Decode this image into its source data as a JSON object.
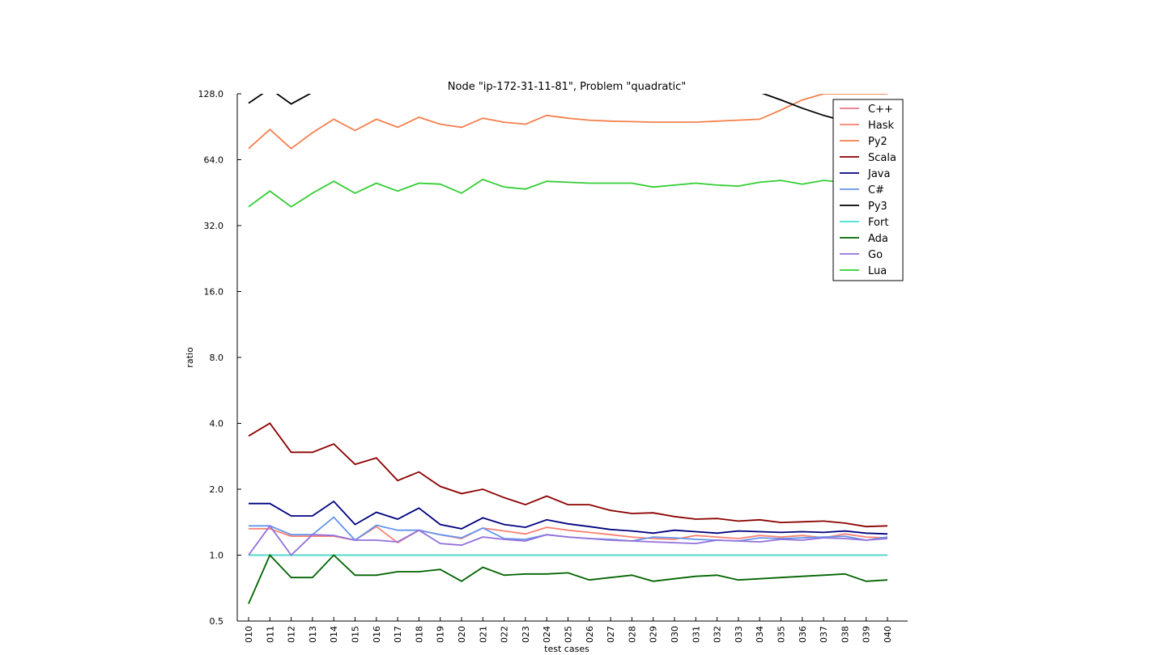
{
  "chart_data": {
    "type": "line",
    "title": "Node \"ip-172-31-11-81\", Problem \"quadratic\"",
    "xlabel": "test cases",
    "ylabel": "ratio",
    "yscale": "log2",
    "ylim": [
      0.5,
      128.0
    ],
    "yticks": [
      "0.5",
      "1.0",
      "2.0",
      "4.0",
      "8.0",
      "16.0",
      "32.0",
      "64.0",
      "128.0"
    ],
    "ytick_values": [
      0.5,
      1,
      2,
      4,
      8,
      16,
      32,
      64,
      128
    ],
    "legend_position": "top-right",
    "grid": false,
    "categories": [
      "010",
      "011",
      "012",
      "013",
      "014",
      "015",
      "016",
      "017",
      "018",
      "019",
      "020",
      "021",
      "022",
      "023",
      "024",
      "025",
      "026",
      "027",
      "028",
      "029",
      "030",
      "031",
      "032",
      "033",
      "034",
      "035",
      "036",
      "037",
      "038",
      "039",
      "040"
    ],
    "series": [
      {
        "name": "C++",
        "color": "#e8758a",
        "values": [
          1,
          1,
          1,
          1,
          1,
          1,
          1,
          1,
          1,
          1,
          1,
          1,
          1,
          1,
          1,
          1,
          1,
          1,
          1,
          1,
          1,
          1,
          1,
          1,
          1,
          1,
          1,
          1,
          1,
          1,
          1
        ]
      },
      {
        "name": "Hask",
        "color": "#fa8072",
        "values": [
          1.32,
          1.32,
          1.22,
          1.22,
          1.22,
          1.17,
          1.35,
          1.14,
          1.3,
          1.24,
          1.19,
          1.33,
          1.29,
          1.25,
          1.34,
          1.3,
          1.27,
          1.24,
          1.21,
          1.19,
          1.18,
          1.23,
          1.21,
          1.19,
          1.23,
          1.21,
          1.23,
          1.2,
          1.25,
          1.21,
          1.2
        ]
      },
      {
        "name": "Py2",
        "color": "#f5804d",
        "values": [
          72,
          88,
          72,
          85,
          98,
          87,
          98,
          90,
          100,
          93,
          90,
          99,
          95,
          93,
          102,
          99,
          97,
          96,
          95.5,
          95,
          95,
          95,
          96,
          97,
          98,
          108,
          120,
          128,
          128,
          128,
          128
        ]
      },
      {
        "name": "Scala",
        "color": "#8b0000",
        "values": [
          3.5,
          4.0,
          2.95,
          2.95,
          3.22,
          2.6,
          2.78,
          2.19,
          2.4,
          2.06,
          1.91,
          2.0,
          1.83,
          1.7,
          1.86,
          1.7,
          1.7,
          1.6,
          1.55,
          1.56,
          1.5,
          1.46,
          1.47,
          1.43,
          1.45,
          1.41,
          1.42,
          1.43,
          1.4,
          1.35,
          1.36
        ]
      },
      {
        "name": "Java",
        "color": "#000080",
        "values": [
          1.72,
          1.72,
          1.51,
          1.51,
          1.76,
          1.38,
          1.57,
          1.46,
          1.64,
          1.38,
          1.32,
          1.48,
          1.38,
          1.34,
          1.45,
          1.39,
          1.35,
          1.31,
          1.29,
          1.26,
          1.3,
          1.28,
          1.26,
          1.29,
          1.28,
          1.27,
          1.28,
          1.27,
          1.29,
          1.26,
          1.25
        ]
      },
      {
        "name": "C#",
        "color": "#6495ed",
        "values": [
          1.36,
          1.36,
          1.24,
          1.24,
          1.49,
          1.17,
          1.37,
          1.3,
          1.3,
          1.24,
          1.2,
          1.33,
          1.19,
          1.18,
          1.24,
          1.21,
          1.19,
          1.18,
          1.16,
          1.21,
          1.2,
          1.18,
          1.17,
          1.16,
          1.2,
          1.19,
          1.2,
          1.21,
          1.22,
          1.17,
          1.21
        ]
      },
      {
        "name": "Py3",
        "color": "#000000",
        "values": [
          116,
          135,
          115,
          130,
          145,
          137,
          150,
          143,
          155,
          149,
          145,
          150,
          150,
          150,
          155,
          152,
          150,
          150,
          150,
          150,
          150,
          150,
          150,
          140,
          130,
          120,
          110,
          102,
          96,
          96,
          96
        ]
      },
      {
        "name": "Fort",
        "color": "#40e0d0",
        "values": [
          1,
          1,
          1,
          1,
          1,
          1,
          1,
          1,
          1,
          1,
          1,
          1,
          1,
          1,
          1,
          1,
          1,
          1,
          1,
          1,
          1,
          1,
          1,
          1,
          1,
          1,
          1,
          1,
          1,
          1,
          1
        ]
      },
      {
        "name": "Ada",
        "color": "#006400",
        "values": [
          0.6,
          1.0,
          0.79,
          0.79,
          1.0,
          0.81,
          0.81,
          0.84,
          0.84,
          0.86,
          0.76,
          0.88,
          0.81,
          0.82,
          0.82,
          0.83,
          0.77,
          0.79,
          0.81,
          0.76,
          0.78,
          0.8,
          0.81,
          0.77,
          0.78,
          0.79,
          0.8,
          0.81,
          0.82,
          0.76,
          0.77
        ]
      },
      {
        "name": "Go",
        "color": "#9370db",
        "values": [
          1,
          1.36,
          1,
          1.24,
          1.23,
          1.17,
          1.17,
          1.15,
          1.3,
          1.13,
          1.11,
          1.21,
          1.18,
          1.16,
          1.24,
          1.21,
          1.19,
          1.17,
          1.16,
          1.15,
          1.14,
          1.13,
          1.17,
          1.16,
          1.15,
          1.18,
          1.17,
          1.2,
          1.19,
          1.17,
          1.19
        ]
      },
      {
        "name": "Lua",
        "color": "#32cd32",
        "values": [
          39,
          46,
          39,
          45,
          51,
          45,
          50,
          46,
          50,
          49.5,
          45,
          52,
          48,
          47,
          51,
          50.5,
          50,
          50,
          50,
          48,
          49,
          50,
          49,
          48.5,
          50.5,
          51.5,
          49.5,
          51.5,
          50.5,
          50,
          50
        ]
      }
    ]
  }
}
